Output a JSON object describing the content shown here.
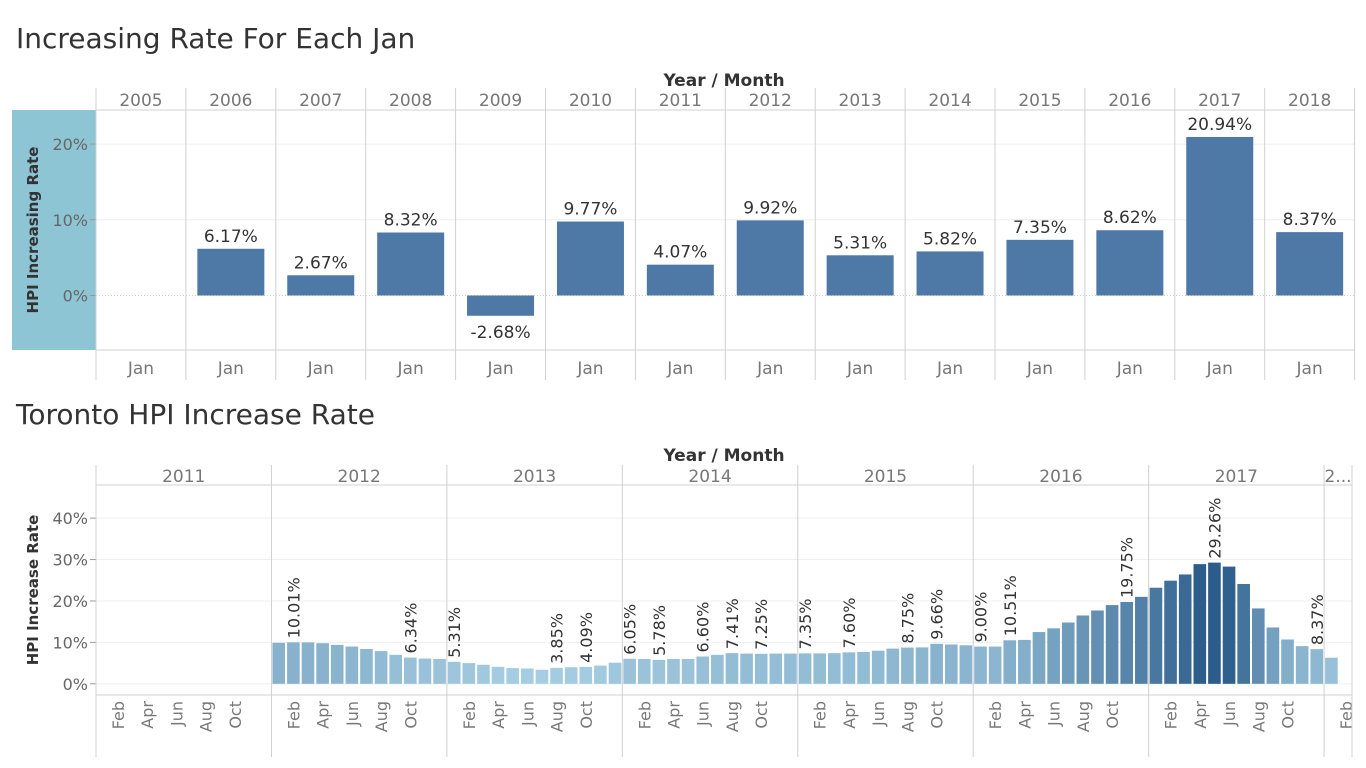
{
  "chart_data": [
    {
      "type": "bar",
      "title": "Increasing Rate For Each Jan",
      "header_title": "Year / Month",
      "ylabel": "HPI Increasing Rate",
      "years": [
        "2005",
        "2006",
        "2007",
        "2008",
        "2009",
        "2010",
        "2011",
        "2012",
        "2013",
        "2014",
        "2015",
        "2016",
        "2017",
        "2018"
      ],
      "month_label": "Jan",
      "values": [
        null,
        6.17,
        2.67,
        8.32,
        -2.68,
        9.77,
        4.07,
        9.92,
        5.31,
        5.82,
        7.35,
        8.62,
        20.94,
        8.37
      ],
      "value_labels": [
        "",
        "6.17%",
        "2.67%",
        "8.32%",
        "-2.68%",
        "9.77%",
        "4.07%",
        "9.92%",
        "5.31%",
        "5.82%",
        "7.35%",
        "8.62%",
        "20.94%",
        "8.37%"
      ],
      "ytick_labels": [
        "0%",
        "10%",
        "20%"
      ],
      "yticks": [
        0,
        10,
        20
      ],
      "ylim": [
        -7.2,
        24.5
      ],
      "bar_color": "#4e79a7",
      "axis_highlight_color": "#8ec5d4",
      "grid": true
    },
    {
      "type": "bar",
      "title": "Toronto HPI Increase Rate",
      "header_title": "Year / Month",
      "ylabel": "HPI Increase Rate",
      "years": [
        "2011",
        "2012",
        "2013",
        "2014",
        "2015",
        "2016",
        "2017",
        "2..."
      ],
      "year_months": [
        [
          "Feb",
          "Apr",
          "Jun",
          "Aug",
          "Oct"
        ],
        [
          "Feb",
          "Apr",
          "Jun",
          "Aug",
          "Oct"
        ],
        [
          "Feb",
          "Apr",
          "Jun",
          "Aug",
          "Oct"
        ],
        [
          "Feb",
          "Apr",
          "Jun",
          "Aug",
          "Oct"
        ],
        [
          "Feb",
          "Apr",
          "Jun",
          "Aug",
          "Oct"
        ],
        [
          "Feb",
          "Apr",
          "Jun",
          "Aug",
          "Oct"
        ],
        [
          "Feb",
          "Apr",
          "Jun",
          "Aug",
          "Oct"
        ],
        [
          "Feb"
        ]
      ],
      "values": [
        null,
        null,
        null,
        null,
        null,
        null,
        null,
        null,
        null,
        null,
        null,
        null,
        9.9,
        10.01,
        10.0,
        9.8,
        9.4,
        9.0,
        8.4,
        7.9,
        7.0,
        6.34,
        6.1,
        6.0,
        5.31,
        5.0,
        4.6,
        4.1,
        3.8,
        3.7,
        3.4,
        3.85,
        4.0,
        4.09,
        4.4,
        5.1,
        6.05,
        6.0,
        5.78,
        6.0,
        6.0,
        6.6,
        7.0,
        7.41,
        7.3,
        7.25,
        7.3,
        7.3,
        7.35,
        7.35,
        7.4,
        7.6,
        7.7,
        8.0,
        8.5,
        8.75,
        8.8,
        9.66,
        9.5,
        9.3,
        9.0,
        9.0,
        10.51,
        10.6,
        12.5,
        13.4,
        14.8,
        16.5,
        17.7,
        19.0,
        19.75,
        21.0,
        23.2,
        24.9,
        26.4,
        28.9,
        29.26,
        28.3,
        24.1,
        18.2,
        13.6,
        10.7,
        9.1,
        8.37,
        6.3
      ],
      "value_labels": [
        "",
        "",
        "",
        "",
        "",
        "",
        "",
        "",
        "",
        "",
        "",
        "",
        "",
        "10.01%",
        "",
        "",
        "",
        "",
        "",
        "",
        "",
        "6.34%",
        "",
        "",
        "5.31%",
        "",
        "",
        "",
        "",
        "",
        "",
        "3.85%",
        "",
        "4.09%",
        "",
        "",
        "6.05%",
        "",
        "5.78%",
        "",
        "",
        "6.60%",
        "",
        "7.41%",
        "",
        "7.25%",
        "",
        "",
        "7.35%",
        "",
        "",
        "7.60%",
        "",
        "",
        "",
        "8.75%",
        "",
        "9.66%",
        "",
        "",
        "9.00%",
        "",
        "10.51%",
        "",
        "",
        "",
        "",
        "",
        "",
        "",
        "19.75%",
        "",
        "",
        "",
        "",
        "",
        "29.26%",
        "",
        "",
        "",
        "",
        "",
        "",
        "8.37%",
        ""
      ],
      "ytick_labels": [
        "0%",
        "10%",
        "20%",
        "30%",
        "40%"
      ],
      "yticks": [
        0,
        10,
        20,
        30,
        40
      ],
      "ylim": [
        -2.7,
        48
      ],
      "color_low": "#a6cee3",
      "color_high": "#2b5c8a",
      "grid": true
    }
  ]
}
